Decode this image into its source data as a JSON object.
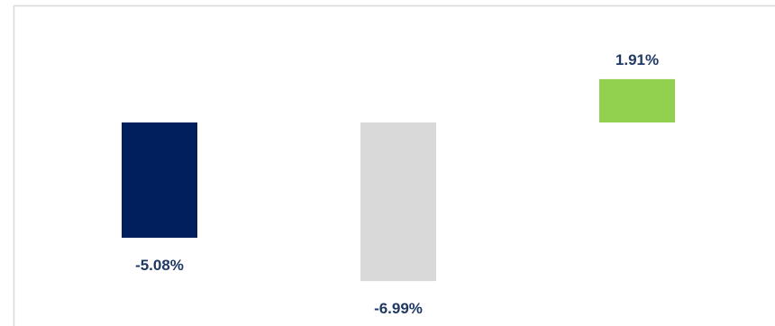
{
  "chart_data": {
    "type": "bar",
    "title": "",
    "xlabel": "",
    "ylabel": "",
    "categories": [
      "",
      "",
      ""
    ],
    "values": [
      -5.08,
      -6.99,
      1.91
    ],
    "data_labels": [
      "-5.08%",
      "-6.99%",
      "1.91%"
    ],
    "colors": [
      "#001f5c",
      "#d9d9d9",
      "#92d050"
    ],
    "label_color": "#1f3864",
    "frame_color": "#d9d9d9",
    "ylim": [
      -8,
      3
    ],
    "grid": false,
    "legend": "none",
    "axes_visible": false
  }
}
